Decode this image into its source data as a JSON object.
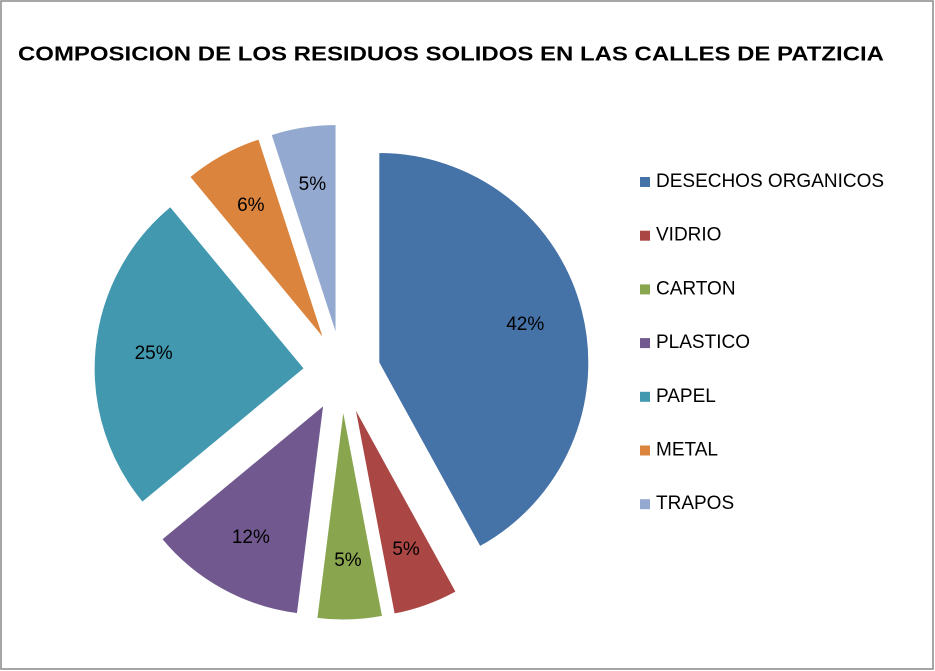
{
  "chart_data": {
    "type": "pie",
    "title": "COMPOSICION DE LOS RESIDUOS SOLIDOS EN LAS CALLES DE  PATZICIA",
    "categories": [
      "DESECHOS ORGANICOS",
      "VIDRIO",
      "CARTON",
      "PLASTICO",
      "PAPEL",
      "METAL",
      "TRAPOS"
    ],
    "values": [
      42,
      5,
      5,
      12,
      25,
      6,
      5
    ],
    "value_labels": [
      "42%",
      "5%",
      "5%",
      "12%",
      "25%",
      "6%",
      "5%"
    ],
    "colors": [
      "#4572a7",
      "#aa4643",
      "#89a54e",
      "#71588f",
      "#4198af",
      "#db843d",
      "#93a9cf"
    ],
    "legend": "right"
  }
}
